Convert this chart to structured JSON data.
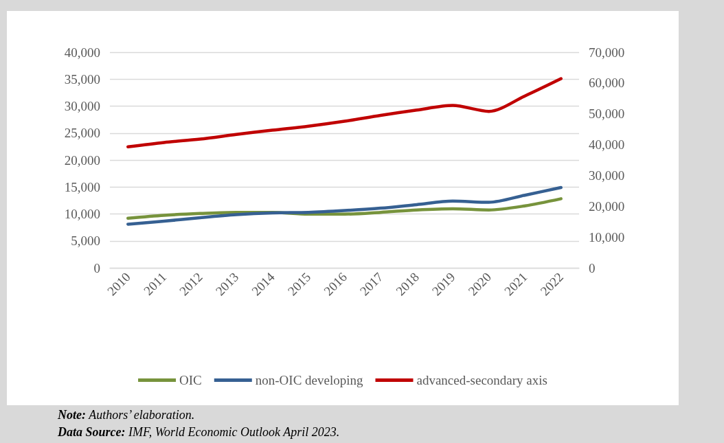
{
  "chart_data": {
    "type": "line",
    "categories": [
      "2010",
      "2011",
      "2012",
      "2013",
      "2014",
      "2015",
      "2016",
      "2017",
      "2018",
      "2019",
      "2020",
      "2021",
      "2022"
    ],
    "series": [
      {
        "name": "OIC",
        "color": "#77933c",
        "values": [
          9200,
          9750,
          10080,
          10300,
          10300,
          9970,
          9970,
          10300,
          10740,
          10960,
          10740,
          11500,
          12820
        ]
      },
      {
        "name": "non-OIC developing",
        "color": "#366092",
        "values": [
          8100,
          8660,
          9300,
          9860,
          10190,
          10300,
          10630,
          11070,
          11730,
          12380,
          12160,
          13480,
          14900
        ]
      },
      {
        "name": "advanced-secondary axis",
        "color": "#c00000",
        "axis": "y2",
        "values": [
          39300,
          40700,
          41800,
          43300,
          44700,
          46000,
          47600,
          49500,
          51200,
          52700,
          50800,
          55800,
          61400
        ]
      }
    ],
    "ylim": [
      0,
      40000
    ],
    "yticks": [
      {
        "value": 0,
        "label": "0"
      },
      {
        "value": 5000,
        "label": "5,000"
      },
      {
        "value": 10000,
        "label": "10,000"
      },
      {
        "value": 15000,
        "label": "15,000"
      },
      {
        "value": 20000,
        "label": "20,000"
      },
      {
        "value": 25000,
        "label": "25,000"
      },
      {
        "value": 30000,
        "label": "30,000"
      },
      {
        "value": 35000,
        "label": "35,000"
      },
      {
        "value": 40000,
        "label": "40,000"
      }
    ],
    "y2lim": [
      0,
      70000
    ],
    "y2ticks": [
      {
        "value": 0,
        "label": "0"
      },
      {
        "value": 10000,
        "label": "10,000"
      },
      {
        "value": 20000,
        "label": "20,000"
      },
      {
        "value": 30000,
        "label": "30,000"
      },
      {
        "value": 40000,
        "label": "40,000"
      },
      {
        "value": 50000,
        "label": "50,000"
      },
      {
        "value": 60000,
        "label": "60,000"
      },
      {
        "value": 70000,
        "label": "70,000"
      }
    ],
    "grid": "y",
    "legend": "bottom",
    "marker": "none",
    "line_style": "solid",
    "annotations": [
      "Note: Authors’ elaboration.",
      "Data Source: IMF, World Economic Outlook April 2023."
    ]
  }
}
